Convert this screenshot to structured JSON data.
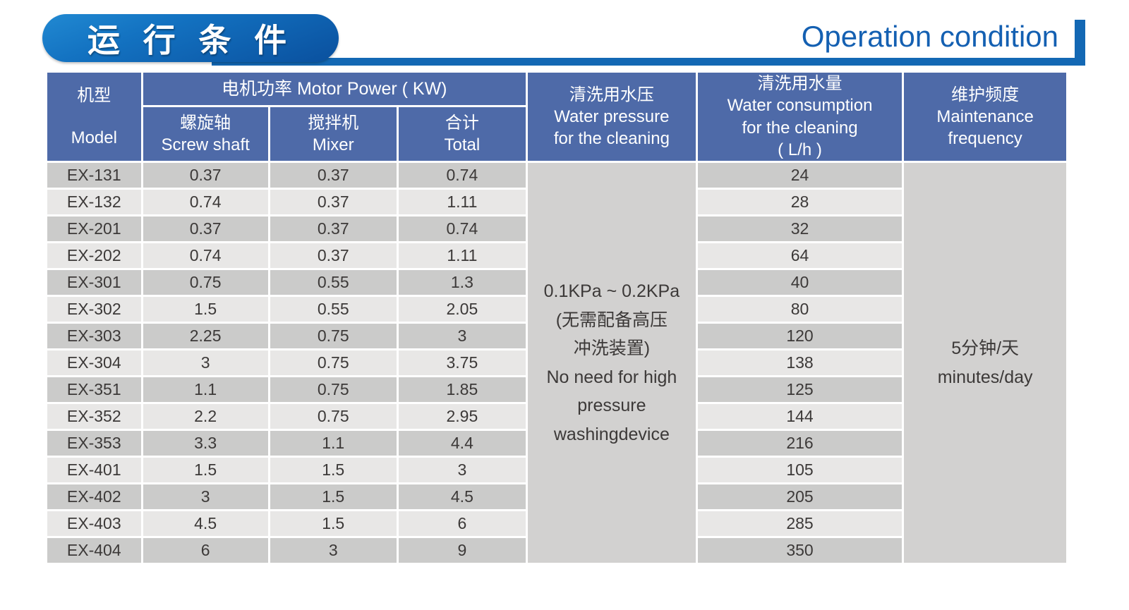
{
  "page": {
    "title_zh": "运 行 条 件",
    "title_en": "Operation condition"
  },
  "colors": {
    "header_blue": "#4e6aa8",
    "accent_blue": "#1368b4",
    "title_en_blue": "#1460b2",
    "pill_gradient_top": "#2189d2",
    "pill_gradient_bottom": "#0a509e",
    "row_dark": "#cbcbca",
    "row_light": "#e8e7e6",
    "merged_cell_bg": "#d2d1d0",
    "cell_text": "#3c3938"
  },
  "table": {
    "header": {
      "model": "机型\nModel",
      "motor_power": "电机功率  Motor Power ( KW)",
      "screw": "螺旋轴\nScrew shaft",
      "mixer": "搅拌机\nMixer",
      "total": "合计\nTotal",
      "pressure": "清洗用水压\nWater pressure\nfor the cleaning",
      "consumption": "清洗用水量\nWater consumption\nfor the cleaning\n( L/h )",
      "maintenance": "维护频度\nMaintenance\nfrequency"
    },
    "merged": {
      "pressure": "0.1KPa ~ 0.2KPa\n(无需配备高压\n冲洗装置)\nNo need for high\npressure\nwashingdevice",
      "maintenance": "5分钟/天\nminutes/day"
    },
    "rows": [
      {
        "model": "EX-131",
        "screw": "0.37",
        "mixer": "0.37",
        "total": "0.74",
        "water": "24"
      },
      {
        "model": "EX-132",
        "screw": "0.74",
        "mixer": "0.37",
        "total": "1.11",
        "water": "28"
      },
      {
        "model": "EX-201",
        "screw": "0.37",
        "mixer": "0.37",
        "total": "0.74",
        "water": "32"
      },
      {
        "model": "EX-202",
        "screw": "0.74",
        "mixer": "0.37",
        "total": "1.11",
        "water": "64"
      },
      {
        "model": "EX-301",
        "screw": "0.75",
        "mixer": "0.55",
        "total": "1.3",
        "water": "40"
      },
      {
        "model": "EX-302",
        "screw": "1.5",
        "mixer": "0.55",
        "total": "2.05",
        "water": "80"
      },
      {
        "model": "EX-303",
        "screw": "2.25",
        "mixer": "0.75",
        "total": "3",
        "water": "120"
      },
      {
        "model": "EX-304",
        "screw": "3",
        "mixer": "0.75",
        "total": "3.75",
        "water": "138"
      },
      {
        "model": "EX-351",
        "screw": "1.1",
        "mixer": "0.75",
        "total": "1.85",
        "water": "125"
      },
      {
        "model": "EX-352",
        "screw": "2.2",
        "mixer": "0.75",
        "total": "2.95",
        "water": "144"
      },
      {
        "model": "EX-353",
        "screw": "3.3",
        "mixer": "1.1",
        "total": "4.4",
        "water": "216"
      },
      {
        "model": "EX-401",
        "screw": "1.5",
        "mixer": "1.5",
        "total": "3",
        "water": "105"
      },
      {
        "model": "EX-402",
        "screw": "3",
        "mixer": "1.5",
        "total": "4.5",
        "water": "205"
      },
      {
        "model": "EX-403",
        "screw": "4.5",
        "mixer": "1.5",
        "total": "6",
        "water": "285"
      },
      {
        "model": "EX-404",
        "screw": "6",
        "mixer": "3",
        "total": "9",
        "water": "350"
      }
    ]
  }
}
